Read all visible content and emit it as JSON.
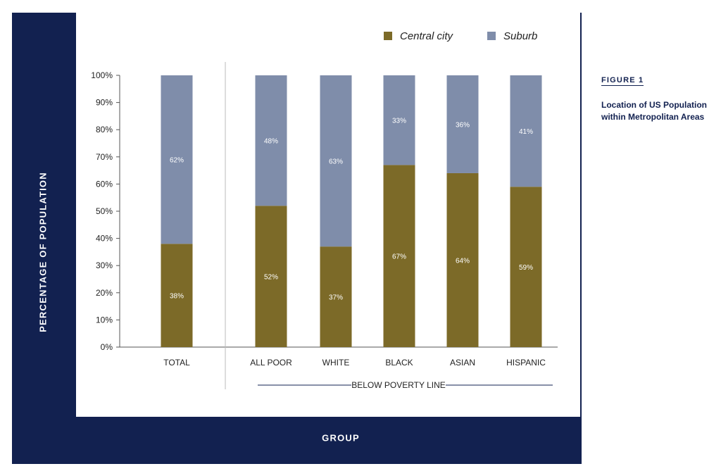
{
  "figure": {
    "number": "FIGURE 1",
    "title": "Location of US Population within Metropolitan Areas"
  },
  "colors": {
    "frame": "#122150",
    "central_city": "#7c6a28",
    "suburb": "#7f8daa"
  },
  "chart_data": {
    "type": "bar",
    "stacked": true,
    "percent": true,
    "categories": [
      "TOTAL",
      "ALL POOR",
      "WHITE",
      "BLACK",
      "ASIAN",
      "HISPANIC"
    ],
    "category_group": {
      "label": "BELOW POVERTY LINE",
      "members": [
        "ALL POOR",
        "WHITE",
        "BLACK",
        "ASIAN",
        "HISPANIC"
      ]
    },
    "series": [
      {
        "name": "Central city",
        "values": [
          38,
          52,
          37,
          67,
          64,
          59
        ],
        "labels": [
          "38%",
          "52%",
          "37%",
          "67%",
          "64%",
          "59%"
        ]
      },
      {
        "name": "Suburb",
        "values": [
          62,
          48,
          63,
          33,
          36,
          41
        ],
        "labels": [
          "62%",
          "48%",
          "63%",
          "33%",
          "36%",
          "41%"
        ]
      }
    ],
    "xlabel": "GROUP",
    "ylabel": "PERCENTAGE OF POPULATION",
    "ylim": [
      0,
      100
    ],
    "yticks": [
      "0%",
      "10%",
      "20%",
      "30%",
      "40%",
      "50%",
      "60%",
      "70%",
      "80%",
      "90%",
      "100%"
    ],
    "legend": {
      "position": "top-right",
      "entries": [
        "Central city",
        "Suburb"
      ]
    },
    "grid": false
  }
}
